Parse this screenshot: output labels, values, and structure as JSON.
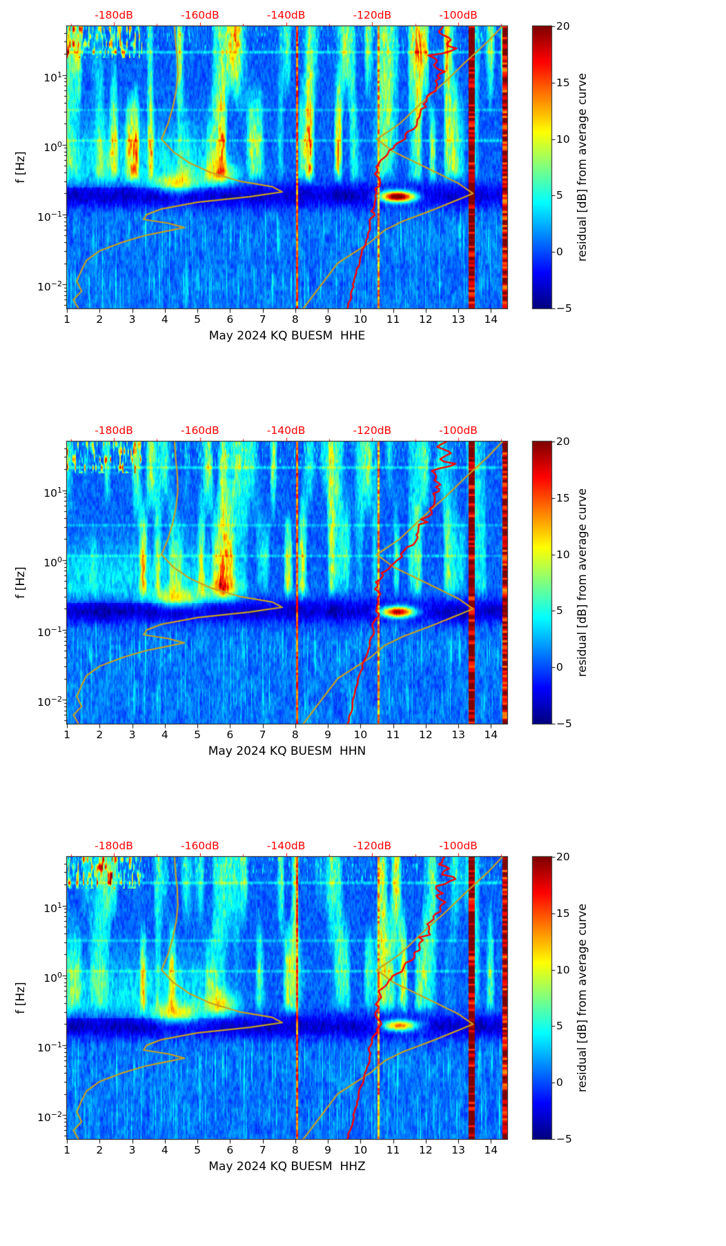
{
  "chart_data": {
    "type": "heatmap",
    "subtype": "seismic-psd-residual-spectrogram",
    "panels": [
      {
        "title": "May 2024 KQ BUESM  HHE",
        "component": "HHE",
        "seed": 11,
        "stripe_scale": 1.0,
        "hot_blob": {
          "day": 11.15,
          "freq": 0.18,
          "amp": 25
        }
      },
      {
        "title": "May 2024 KQ BUESM  HHN",
        "component": "HHN",
        "seed": 22,
        "stripe_scale": 1.0,
        "hot_blob": {
          "day": 11.15,
          "freq": 0.18,
          "amp": 22
        }
      },
      {
        "title": "May 2024 KQ BUESM  HHZ",
        "component": "HHZ",
        "seed": 33,
        "stripe_scale": 0.88,
        "hot_blob": {
          "day": 11.2,
          "freq": 0.19,
          "amp": 17
        }
      }
    ],
    "x_axis": {
      "min": 1,
      "max": 14.5,
      "ticks": [
        1,
        2,
        3,
        4,
        5,
        6,
        7,
        8,
        9,
        10,
        11,
        12,
        13,
        14
      ]
    },
    "y_axis": {
      "label": "f [Hz]",
      "scale": "log",
      "min": 0.0045,
      "max": 50,
      "major_ticks": [
        {
          "exp": "1",
          "freq": 10
        },
        {
          "exp": "0",
          "freq": 1
        },
        {
          "exp": "−1",
          "freq": 0.1
        },
        {
          "exp": "−2",
          "freq": 0.01
        }
      ]
    },
    "top_axis": {
      "color": "#ff0000",
      "ticks": [
        {
          "label": "-180dB",
          "day": 2.44
        },
        {
          "label": "-160dB",
          "day": 5.08
        },
        {
          "label": "-140dB",
          "day": 7.72
        },
        {
          "label": "-120dB",
          "day": 10.36
        },
        {
          "label": "-100dB",
          "day": 13.0
        }
      ],
      "minor_days": [
        1.12,
        3.76,
        6.4,
        9.04,
        11.68,
        14.32
      ]
    },
    "colorbar": {
      "label": "residual [dB] from average curve",
      "min": -5,
      "max": 20,
      "colormap": "jet",
      "ticks": [
        {
          "value": 20,
          "label": "20"
        },
        {
          "value": 15,
          "label": "15"
        },
        {
          "value": 10,
          "label": "10"
        },
        {
          "value": 5,
          "label": "5"
        },
        {
          "value": 0,
          "label": "0"
        },
        {
          "value": -5,
          "label": "−5"
        }
      ]
    },
    "curves": {
      "model_low": {
        "color": "#c7a022",
        "width": 2.2,
        "points_freq_day": [
          [
            0.0045,
            1.35
          ],
          [
            0.006,
            1.2
          ],
          [
            0.008,
            1.45
          ],
          [
            0.011,
            1.3
          ],
          [
            0.016,
            1.45
          ],
          [
            0.022,
            1.6
          ],
          [
            0.03,
            2.0
          ],
          [
            0.04,
            2.7
          ],
          [
            0.05,
            3.4
          ],
          [
            0.065,
            4.6
          ],
          [
            0.075,
            4.1
          ],
          [
            0.085,
            3.35
          ],
          [
            0.1,
            3.45
          ],
          [
            0.12,
            3.9
          ],
          [
            0.15,
            5.0
          ],
          [
            0.18,
            6.6
          ],
          [
            0.21,
            7.6
          ],
          [
            0.25,
            7.3
          ],
          [
            0.3,
            6.3
          ],
          [
            0.4,
            5.4
          ],
          [
            0.55,
            4.75
          ],
          [
            0.8,
            4.25
          ],
          [
            1.2,
            3.9
          ],
          [
            2,
            4.1
          ],
          [
            3.5,
            4.25
          ],
          [
            6,
            4.35
          ],
          [
            10,
            4.4
          ],
          [
            18,
            4.38
          ],
          [
            30,
            4.33
          ],
          [
            50,
            4.3
          ]
        ]
      },
      "model_high": {
        "color": "#c7a022",
        "width": 2.2,
        "points_freq_day": [
          [
            0.0045,
            8.25
          ],
          [
            0.02,
            9.3
          ],
          [
            0.04,
            10.3
          ],
          [
            0.06,
            10.75
          ],
          [
            0.08,
            11.3
          ],
          [
            0.12,
            12.3
          ],
          [
            0.2,
            13.45
          ],
          [
            0.28,
            13.0
          ],
          [
            0.5,
            11.9
          ],
          [
            0.8,
            11.0
          ],
          [
            1.2,
            10.5
          ],
          [
            2,
            11.2
          ],
          [
            3,
            11.6
          ],
          [
            5,
            12.1
          ],
          [
            8,
            12.6
          ],
          [
            15,
            13.2
          ],
          [
            30,
            13.9
          ],
          [
            50,
            14.35
          ]
        ]
      },
      "current_psd": {
        "color": "#ff0000",
        "width": 2.4,
        "points_freq_day": [
          [
            0.0045,
            9.6
          ],
          [
            0.01,
            9.8
          ],
          [
            0.02,
            9.95
          ],
          [
            0.04,
            10.15
          ],
          [
            0.06,
            10.28
          ],
          [
            0.09,
            10.33
          ],
          [
            0.13,
            10.45
          ],
          [
            0.2,
            10.55
          ],
          [
            0.3,
            10.5
          ],
          [
            0.45,
            10.55
          ],
          [
            0.65,
            10.7
          ],
          [
            0.9,
            11.0
          ],
          [
            1.3,
            11.35
          ],
          [
            1.8,
            11.6
          ],
          [
            2.5,
            11.8
          ],
          [
            3.5,
            11.95
          ],
          [
            5,
            12.1
          ],
          [
            7,
            12.3
          ],
          [
            9,
            12.4
          ],
          [
            12,
            12.5
          ],
          [
            15,
            12.35
          ],
          [
            19,
            12.25
          ],
          [
            24,
            12.85
          ],
          [
            28,
            12.55
          ],
          [
            34,
            12.7
          ],
          [
            42,
            12.45
          ],
          [
            50,
            12.55
          ]
        ]
      }
    },
    "features": {
      "vertical_lines": [
        {
          "day": 8.05,
          "width": 0.035,
          "value": 15
        },
        {
          "day": 10.55,
          "width": 0.03,
          "value": 13
        },
        {
          "day": 13.42,
          "width": 0.09,
          "value": 20
        },
        {
          "day": 14.44,
          "width": 0.07,
          "value": 18
        }
      ],
      "dark_band": {
        "log_freq": -0.74,
        "sigma": 0.17,
        "depth": 4.2
      },
      "stripe_band": {
        "amp": 11,
        "lf_start": -0.62,
        "lf_full": -0.35
      },
      "bright_left_region": {
        "day_end": 6.6,
        "lf_center": -0.25,
        "lf_sigma": 0.35,
        "amp": 3.5
      },
      "hot_speckles": {
        "day_max": 3.3,
        "lf_min": 1.25,
        "amp": 16
      },
      "blobs": [
        {
          "day": 4.35,
          "lf": -0.55,
          "sd": 0.5,
          "slf": 0.1,
          "amp": 9
        },
        {
          "day": 5.8,
          "lf": -0.42,
          "sd": 0.35,
          "slf": 0.12,
          "amp": 7
        }
      ],
      "h_lines": [
        {
          "lf": 0.06,
          "amp": 3.2
        },
        {
          "lf": 0.5,
          "amp": 2.6
        },
        {
          "lf": 1.33,
          "amp": 4.0
        }
      ]
    }
  }
}
